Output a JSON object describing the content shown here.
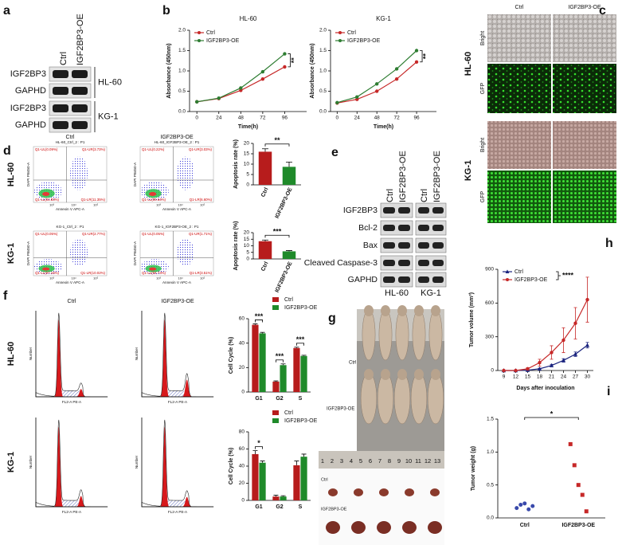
{
  "panel_labels": [
    "a",
    "b",
    "c",
    "d",
    "e",
    "f",
    "g",
    "h",
    "i"
  ],
  "blot_a": {
    "columns": [
      "Ctrl",
      "IGF2BP3-OE"
    ],
    "rows": [
      "IGF2BP3",
      "GAPHD",
      "IGF2BP3",
      "GAPHD"
    ],
    "groups": [
      "HL-60",
      "KG-1"
    ]
  },
  "microscopy_c": {
    "columns": [
      "Ctrl",
      "IGF2BP3-OE"
    ],
    "channels": [
      "Bright",
      "GFP"
    ],
    "cells": [
      "HL-60",
      "KG-1"
    ]
  },
  "flow_d": {
    "columns": [
      "Ctrl",
      "IGF2BP3-OE"
    ],
    "rows": [
      "HL-60",
      "KG-1"
    ],
    "x_label": "Annexin V APC-A",
    "y_label": "DAPI PB450-A",
    "ticks": [
      "10³",
      "10⁴",
      "10⁵"
    ],
    "plots": [
      {
        "title": "HL-60_Ctrl_2 : P1",
        "quadrants": [
          "Q1-UL(0.09%)",
          "Q1-UR(3.73%)",
          "Q1-LL(84.83%)",
          "Q1-LR(11.35%)"
        ]
      },
      {
        "title": "HL-60_IGF2BP3-OE_2 : P1",
        "quadrants": [
          "Q1-UL(0.22%)",
          "Q1-UR(3.03%)",
          "Q1-LL(89.64%)",
          "Q1-LR(6.60%)"
        ]
      },
      {
        "title": "KG-1_Ctrl_2 : P1",
        "quadrants": [
          "Q1-UL(0.05%)",
          "Q1-UR(2.77%)",
          "Q1-LL(87.16%)",
          "Q1-LR(10.02%)"
        ]
      },
      {
        "title": "KG-1_IGF2BP3-OE_2 : P1",
        "quadrants": [
          "Q1-UL(0.05%)",
          "Q1-UR(1.71%)",
          "Q1-LL(94.73%)",
          "Q1-LR(3.51%)"
        ]
      }
    ]
  },
  "blot_e": {
    "columns": [
      "Ctrl",
      "IGF2BP3-OE",
      "Ctrl",
      "IGF2BP3-OE"
    ],
    "rows": [
      "IGF2BP3",
      "Bcl-2",
      "Bax",
      "Cleaved Caspase-3",
      "GAPHD"
    ],
    "groups": [
      "HL-60",
      "KG-1"
    ]
  },
  "cycle_f": {
    "columns": [
      "Ctrl",
      "IGF2BP3-OE"
    ],
    "rows": [
      "HL-60",
      "KG-1"
    ],
    "x_label": "FL2-A PE-A",
    "y_label": "Number"
  },
  "photo_g": {
    "mice_labels": [
      "Ctrl",
      "IGF2BP3-OE"
    ],
    "tumor_labels": [
      "Ctrl",
      "IGF2BP3-OE"
    ],
    "ruler": [
      "1",
      "2",
      "3",
      "4",
      "5",
      "6",
      "7",
      "8",
      "9",
      "10",
      "11",
      "12",
      "13"
    ]
  },
  "chart_data": [
    {
      "type": "line",
      "title": "HL-60",
      "x_label": "Time(h)",
      "y_label": "Absorbance (450nm)",
      "x": [
        0,
        24,
        48,
        72,
        96
      ],
      "xlim": [
        -8,
        120
      ],
      "xticks": [
        0,
        24,
        48,
        72,
        96
      ],
      "ylim": [
        0,
        2
      ],
      "yticks": [
        {
          "value": 0,
          "label": "0.0"
        },
        0.5,
        {
          "value": 1,
          "label": "1.0"
        },
        1.5,
        {
          "value": 2,
          "label": "2.0"
        }
      ],
      "legend": "upper left",
      "annotation": "**",
      "series": [
        {
          "name": "Ctrl",
          "color": "#c62828",
          "marker": "circle",
          "values": [
            0.24,
            0.32,
            0.52,
            0.8,
            1.1
          ]
        },
        {
          "name": "IGF2BP3-OE",
          "color": "#2e7d32",
          "marker": "circle",
          "values": [
            0.24,
            0.33,
            0.58,
            0.98,
            1.42
          ]
        }
      ]
    },
    {
      "type": "line",
      "title": "KG-1",
      "x_label": "Time(h)",
      "y_label": "Absorbance (450nm)",
      "x": [
        0,
        24,
        48,
        72,
        96
      ],
      "xlim": [
        -8,
        120
      ],
      "xticks": [
        0,
        24,
        48,
        72,
        96
      ],
      "ylim": [
        0,
        2
      ],
      "yticks": [
        {
          "value": 0,
          "label": "0.0"
        },
        0.5,
        {
          "value": 1,
          "label": "1.0"
        },
        1.5,
        {
          "value": 2,
          "label": "2.0"
        }
      ],
      "legend": "upper left",
      "annotation": "**",
      "series": [
        {
          "name": "Ctrl",
          "color": "#c62828",
          "marker": "circle",
          "values": [
            0.21,
            0.3,
            0.5,
            0.8,
            1.22
          ]
        },
        {
          "name": "IGF2BP3-OE",
          "color": "#2e7d32",
          "marker": "circle",
          "values": [
            0.22,
            0.36,
            0.68,
            1.05,
            1.5
          ]
        }
      ]
    },
    {
      "type": "bar",
      "y_label": "Apoptosis rate (%)",
      "categories": [
        "Ctrl",
        "IGF2BP3-OE"
      ],
      "values": [
        16,
        8.7
      ],
      "errors": [
        1.4,
        2.3
      ],
      "colors": [
        "#b71c1c",
        "#1f8a2a"
      ],
      "ylim": [
        0,
        20
      ],
      "yticks": [
        0,
        5,
        10,
        15,
        20
      ],
      "annotation": "**"
    },
    {
      "type": "bar",
      "y_label": "Apoptosis rate (%)",
      "categories": [
        "Ctrl",
        "IGF2BP3-OE"
      ],
      "values": [
        13.5,
        5.8
      ],
      "errors": [
        0.9,
        0.6
      ],
      "colors": [
        "#b71c1c",
        "#1f8a2a"
      ],
      "ylim": [
        0,
        20
      ],
      "yticks": [
        0,
        5,
        10,
        15,
        20
      ],
      "annotation": "***"
    },
    {
      "type": "bar",
      "y_label": "Cell Cycle (%)",
      "categories": [
        "G1",
        "G2",
        "S"
      ],
      "ylim": [
        0,
        60
      ],
      "yticks": [
        0,
        20,
        40,
        60
      ],
      "legend": "upper right",
      "annotations": [
        "***",
        "***",
        "***"
      ],
      "series": [
        {
          "name": "Ctrl",
          "color": "#b71c1c",
          "values": [
            55,
            8.5,
            36
          ],
          "errors": [
            0.8,
            0.6,
            0.7
          ]
        },
        {
          "name": "IGF2BP3-OE",
          "color": "#1f8a2a",
          "values": [
            48,
            22,
            29.5
          ],
          "errors": [
            0.8,
            1,
            0.6
          ]
        }
      ]
    },
    {
      "type": "bar",
      "y_label": "Cell Cycle (%)",
      "categories": [
        "G1",
        "G2",
        "S"
      ],
      "ylim": [
        0,
        80
      ],
      "yticks": [
        0,
        20,
        40,
        60,
        80
      ],
      "legend": "upper right",
      "annotations": [
        "*",
        null,
        null
      ],
      "series": [
        {
          "name": "Ctrl",
          "color": "#b71c1c",
          "values": [
            54,
            4.5,
            41
          ],
          "errors": [
            4,
            1.5,
            5
          ]
        },
        {
          "name": "IGF2BP3-OE",
          "color": "#1f8a2a",
          "values": [
            44,
            4.5,
            51
          ],
          "errors": [
            2,
            1,
            3
          ]
        }
      ]
    },
    {
      "type": "line",
      "x_label": "Days after inoculation",
      "y_label": "Tumor volume (mm³)",
      "x": [
        9,
        12,
        15,
        18,
        21,
        24,
        27,
        30
      ],
      "xlim": [
        7.5,
        31.5
      ],
      "xticks": [
        9,
        12,
        15,
        18,
        21,
        24,
        27,
        30
      ],
      "ylim": [
        0,
        900
      ],
      "yticks": [
        0,
        300,
        600,
        900
      ],
      "legend": "upper left",
      "annotation": "****",
      "series": [
        {
          "name": "Ctrl",
          "color": "#1a237e",
          "marker": "triangle",
          "values": [
            0,
            0,
            3,
            15,
            45,
            90,
            145,
            225
          ],
          "errors": [
            0,
            0,
            2,
            5,
            10,
            15,
            20,
            25
          ]
        },
        {
          "name": "IGF2BP3-OE",
          "color": "#c62828",
          "marker": "circle",
          "values": [
            0,
            0,
            15,
            70,
            160,
            270,
            420,
            630
          ],
          "errors": [
            0,
            0,
            10,
            30,
            60,
            110,
            140,
            200
          ]
        }
      ]
    },
    {
      "type": "strip",
      "y_label": "Tumor weight (g)",
      "categories": [
        "Ctrl",
        "IGF2BP3-OE"
      ],
      "values": [
        [
          0.15,
          0.2,
          0.22,
          0.13,
          0.18
        ],
        [
          1.12,
          0.8,
          0.5,
          0.35,
          0.1
        ]
      ],
      "colors": [
        "#3949ab",
        "#c62828"
      ],
      "markers": [
        "circle",
        "square"
      ],
      "ylim": [
        0,
        1.5
      ],
      "yticks": [
        {
          "value": 0,
          "label": "0.0"
        },
        0.5,
        {
          "value": 1,
          "label": "1.0"
        },
        1.5
      ],
      "annotation": "*"
    }
  ]
}
